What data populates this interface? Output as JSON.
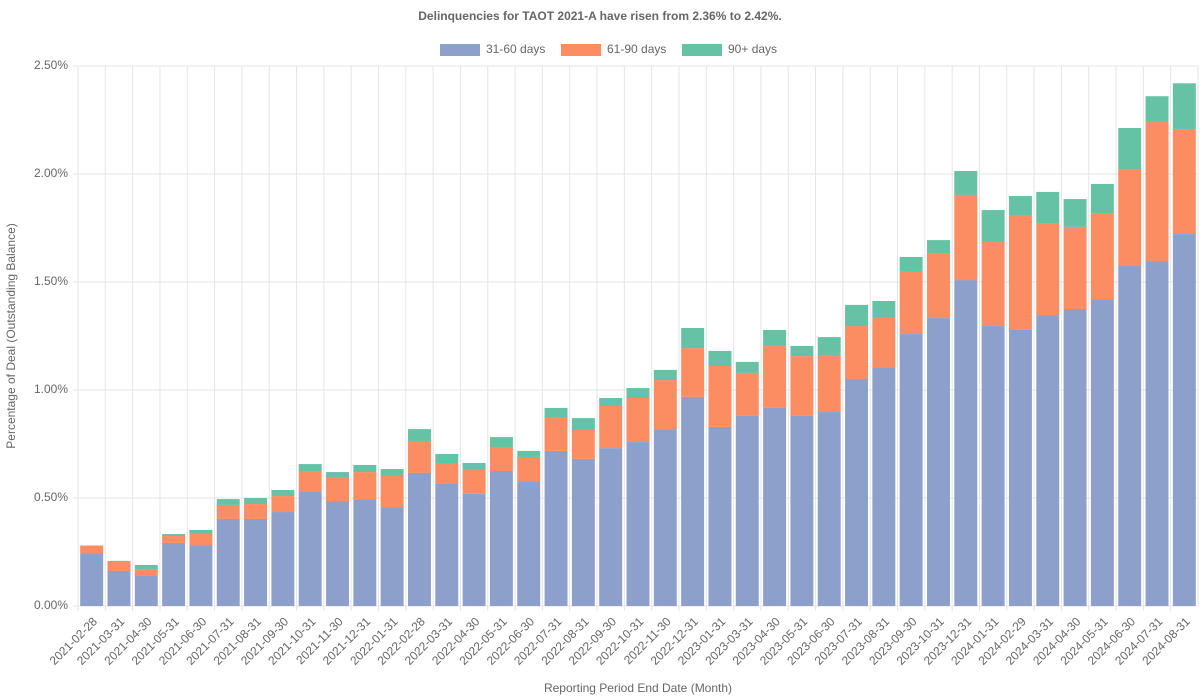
{
  "chart_data": {
    "type": "stacked_bar",
    "title": "Delinquencies for TAOT 2021-A have risen from 2.36% to 2.42%.",
    "x_label": "Reporting Period End Date (Month)",
    "y_label": "Percentage of Deal (Outstanding Balance)",
    "categories": [
      "2021-02-28",
      "2021-03-31",
      "2021-04-30",
      "2021-05-31",
      "2021-06-30",
      "2021-07-31",
      "2021-08-31",
      "2021-09-30",
      "2021-10-31",
      "2021-11-30",
      "2021-12-31",
      "2022-01-31",
      "2022-02-28",
      "2022-03-31",
      "2022-04-30",
      "2022-05-31",
      "2022-06-30",
      "2022-07-31",
      "2022-08-31",
      "2022-09-30",
      "2022-10-31",
      "2022-11-30",
      "2022-12-31",
      "2023-01-31",
      "2023-03-31",
      "2023-04-30",
      "2023-05-31",
      "2023-06-30",
      "2023-07-31",
      "2023-08-31",
      "2023-09-30",
      "2023-10-31",
      "2023-12-31",
      "2024-01-31",
      "2024-02-29",
      "2024-03-31",
      "2024-04-30",
      "2024-05-31",
      "2024-06-30",
      "2024-07-31",
      "2024-08-31"
    ],
    "series": [
      {
        "name": "31-60 days",
        "color": "#8da0cb",
        "values": [
          0.245,
          0.162,
          0.139,
          0.292,
          0.282,
          0.403,
          0.403,
          0.435,
          0.532,
          0.486,
          0.495,
          0.458,
          0.616,
          0.565,
          0.519,
          0.625,
          0.574,
          0.718,
          0.681,
          0.731,
          0.759,
          0.819,
          0.968,
          0.829,
          0.88,
          0.917,
          0.88,
          0.898,
          1.051,
          1.106,
          1.259,
          1.333,
          1.509,
          1.296,
          1.278,
          1.347,
          1.375,
          1.421,
          1.574,
          1.597,
          1.722
        ]
      },
      {
        "name": "61-90 days",
        "color": "#fc8d62",
        "values": [
          0.035,
          0.042,
          0.032,
          0.032,
          0.056,
          0.065,
          0.069,
          0.074,
          0.093,
          0.107,
          0.125,
          0.144,
          0.148,
          0.097,
          0.111,
          0.111,
          0.116,
          0.157,
          0.134,
          0.195,
          0.204,
          0.227,
          0.226,
          0.282,
          0.199,
          0.287,
          0.277,
          0.264,
          0.245,
          0.232,
          0.292,
          0.301,
          0.394,
          0.389,
          0.528,
          0.426,
          0.38,
          0.398,
          0.449,
          0.644,
          0.486
        ]
      },
      {
        "name": "90+ days",
        "color": "#66c2a5",
        "values": [
          0,
          0.005,
          0.019,
          0.009,
          0.014,
          0.027,
          0.028,
          0.028,
          0.032,
          0.027,
          0.033,
          0.032,
          0.055,
          0.042,
          0.032,
          0.046,
          0.028,
          0.042,
          0.055,
          0.037,
          0.046,
          0.047,
          0.093,
          0.07,
          0.051,
          0.074,
          0.047,
          0.083,
          0.098,
          0.074,
          0.065,
          0.06,
          0.111,
          0.148,
          0.092,
          0.144,
          0.129,
          0.135,
          0.19,
          0.119,
          0.212
        ]
      }
    ],
    "ylim": [
      0,
      2.5
    ],
    "yticks": [
      {
        "value": 0,
        "label": "0.00%"
      },
      {
        "value": 0.5,
        "label": "0.50%"
      },
      {
        "value": 1,
        "label": "1.00%"
      },
      {
        "value": 1.5,
        "label": "1.50%"
      },
      {
        "value": 2,
        "label": "2.00%"
      },
      {
        "value": 2.5,
        "label": "2.50%"
      }
    ],
    "grid": true,
    "legend": "top"
  }
}
